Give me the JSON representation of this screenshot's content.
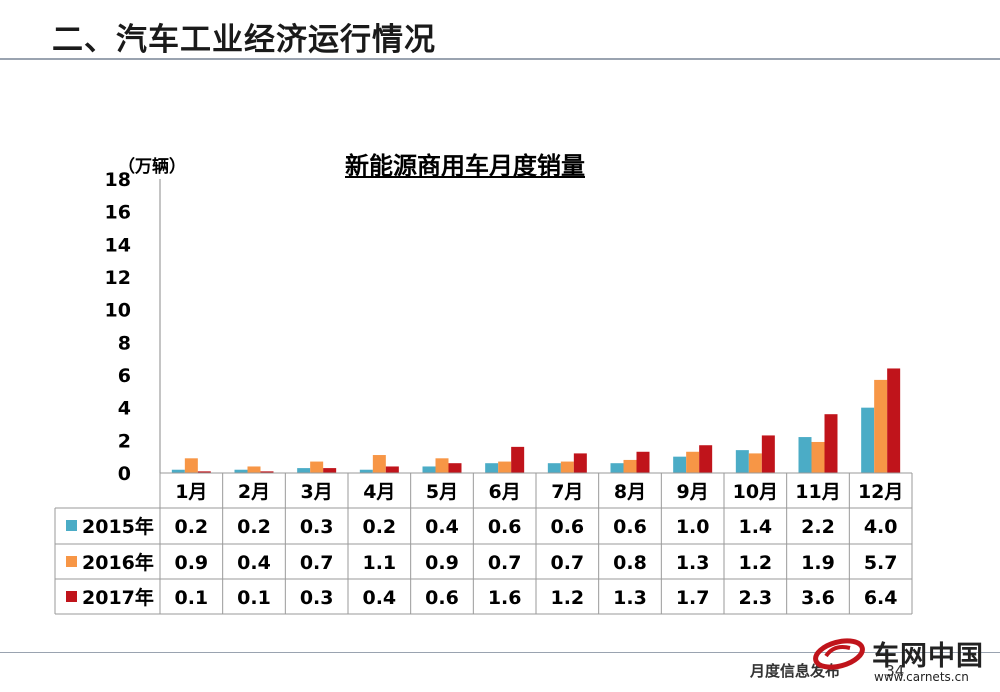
{
  "header": {
    "title": "二、汽车工业经济运行情况"
  },
  "footer": {
    "text": "月度信息发布",
    "page": "34"
  },
  "logo": {
    "name": "车网中国",
    "url": "www.carnets.cn"
  },
  "colors": {
    "s2015": "#4bacc6",
    "s2016": "#f79646",
    "s2017": "#c0141b"
  },
  "chart_data": {
    "type": "bar",
    "title": "新能源商用车月度销量",
    "ylabel": "（万辆）",
    "ylim": [
      0,
      18
    ],
    "yticks": [
      0,
      2,
      4,
      6,
      8,
      10,
      12,
      14,
      16,
      18
    ],
    "categories": [
      "1月",
      "2月",
      "3月",
      "4月",
      "5月",
      "6月",
      "7月",
      "8月",
      "9月",
      "10月",
      "11月",
      "12月"
    ],
    "series": [
      {
        "name": "2015年",
        "values": [
          0.2,
          0.2,
          0.3,
          0.2,
          0.4,
          0.6,
          0.6,
          0.6,
          1.0,
          1.4,
          2.2,
          4.0
        ],
        "labels": [
          "0.2",
          "0.2",
          "0.3",
          "0.2",
          "0.4",
          "0.6",
          "0.6",
          "0.6",
          "1.0",
          "1.4",
          "2.2",
          "4.0"
        ]
      },
      {
        "name": "2016年",
        "values": [
          0.9,
          0.4,
          0.7,
          1.1,
          0.9,
          0.7,
          0.7,
          0.8,
          1.3,
          1.2,
          1.9,
          5.7
        ],
        "labels": [
          "0.9",
          "0.4",
          "0.7",
          "1.1",
          "0.9",
          "0.7",
          "0.7",
          "0.8",
          "1.3",
          "1.2",
          "1.9",
          "5.7"
        ]
      },
      {
        "name": "2017年",
        "values": [
          0.1,
          0.1,
          0.3,
          0.4,
          0.6,
          1.6,
          1.2,
          1.3,
          1.7,
          2.3,
          3.6,
          6.4
        ],
        "labels": [
          "0.1",
          "0.1",
          "0.3",
          "0.4",
          "0.6",
          "1.6",
          "1.2",
          "1.3",
          "1.7",
          "2.3",
          "3.6",
          "6.4"
        ]
      }
    ],
    "grid": false,
    "legend": "table-left"
  }
}
